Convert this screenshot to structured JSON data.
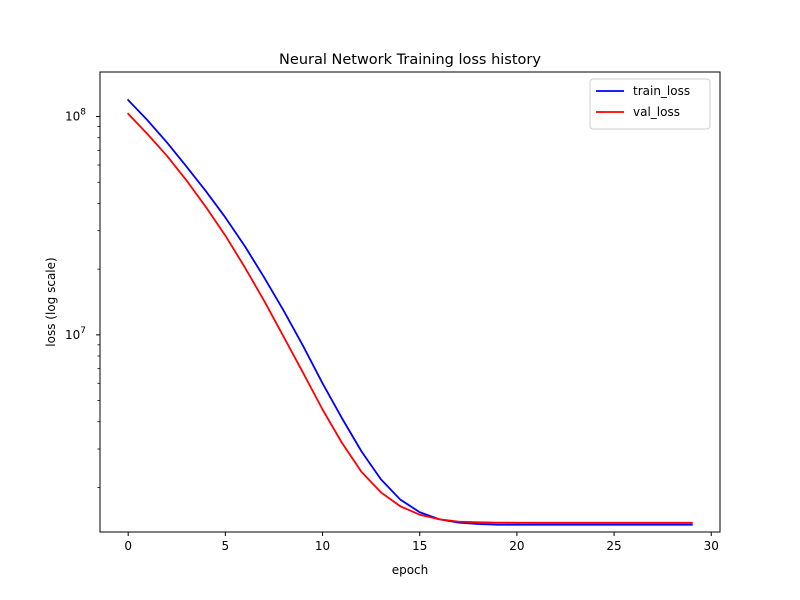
{
  "chart_data": {
    "type": "line",
    "title": "Neural Network Training loss history",
    "xlabel": "epoch",
    "ylabel": "loss (log scale)",
    "yscale": "log",
    "xlim": [
      -1.45,
      30.45
    ],
    "ylim": [
      1250000,
      160000000
    ],
    "grid": false,
    "legend_position": "top-right",
    "xticks": [
      0,
      5,
      10,
      15,
      20,
      25,
      30
    ],
    "xtick_labels": [
      "0",
      "5",
      "10",
      "15",
      "20",
      "25",
      "30"
    ],
    "yticks": [
      10000000,
      100000000
    ],
    "ytick_labels": [
      {
        "base": "10",
        "exp": "7"
      },
      {
        "base": "10",
        "exp": "8"
      }
    ],
    "x": [
      0,
      1,
      2,
      3,
      4,
      5,
      6,
      7,
      8,
      9,
      10,
      11,
      12,
      13,
      14,
      15,
      16,
      17,
      18,
      19,
      20,
      21,
      22,
      23,
      24,
      25,
      26,
      27,
      28,
      29
    ],
    "series": [
      {
        "name": "train_loss",
        "color": "#0000ff",
        "values": [
          119000000,
          96000000,
          76000000,
          59000000,
          45500000,
          34500000,
          25500000,
          18300000,
          12900000,
          8900000,
          6000000,
          4150000,
          2930000,
          2180000,
          1760000,
          1540000,
          1430000,
          1380000,
          1360000,
          1350000,
          1350000,
          1350000,
          1350000,
          1350000,
          1350000,
          1350000,
          1350000,
          1350000,
          1350000,
          1350000
        ]
      },
      {
        "name": "val_loss",
        "color": "#ff0000",
        "values": [
          103000000,
          83000000,
          66000000,
          51000000,
          38500000,
          28500000,
          20400000,
          14300000,
          9800000,
          6700000,
          4550000,
          3200000,
          2360000,
          1900000,
          1640000,
          1500000,
          1430000,
          1395000,
          1385000,
          1380000,
          1378000,
          1377000,
          1377000,
          1377000,
          1377000,
          1377000,
          1377000,
          1377000,
          1377000,
          1377000
        ]
      }
    ]
  }
}
